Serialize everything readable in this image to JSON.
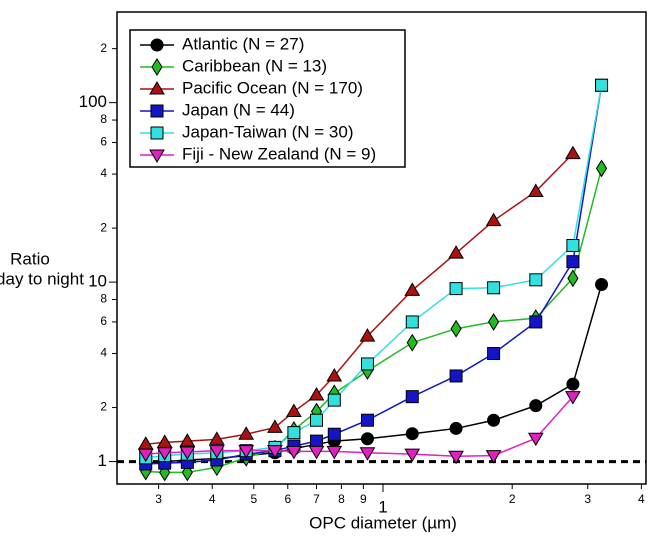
{
  "chart_data": {
    "type": "line",
    "x_label": "OPC diameter (µm)",
    "y_label": [
      "Ratio",
      "day to night"
    ],
    "xscale": "log",
    "yscale": "log",
    "xlim": [
      0.24,
      4.1
    ],
    "ylim": [
      0.75,
      320
    ],
    "xticks": [
      {
        "value": 0.3,
        "label": "3"
      },
      {
        "value": 0.4,
        "label": "4"
      },
      {
        "value": 0.5,
        "label": "5"
      },
      {
        "value": 0.6,
        "label": "6"
      },
      {
        "value": 0.7,
        "label": "7"
      },
      {
        "value": 0.8,
        "label": "8"
      },
      {
        "value": 0.9,
        "label": "9"
      },
      1,
      2,
      3,
      4
    ],
    "yticks": [
      1,
      2,
      4,
      6,
      8,
      10,
      {
        "value": 20,
        "label": "2"
      },
      {
        "value": 40,
        "label": "4"
      },
      {
        "value": 60,
        "label": "6"
      },
      {
        "value": 80,
        "label": "8"
      },
      100,
      {
        "value": 200,
        "label": "2"
      }
    ],
    "hline": 1,
    "x": [
      0.28,
      0.31,
      0.35,
      0.41,
      0.48,
      0.56,
      0.62,
      0.7,
      0.77,
      0.92,
      1.17,
      1.48,
      1.81,
      2.27,
      2.77,
      3.23
    ],
    "series": [
      {
        "name": "Atlantic (N = 27)",
        "color": "#000000",
        "marker": "circle",
        "values": [
          0.98,
          1.0,
          1.02,
          1.04,
          1.08,
          1.12,
          1.18,
          1.25,
          1.3,
          1.34,
          1.43,
          1.53,
          1.7,
          2.05,
          2.7,
          9.7
        ]
      },
      {
        "name": "Caribbean (N = 13)",
        "color": "#22bb22",
        "marker": "diamond",
        "values": [
          0.88,
          0.87,
          0.87,
          0.93,
          1.05,
          1.18,
          1.5,
          1.9,
          2.4,
          3.2,
          4.6,
          5.5,
          6.0,
          6.3,
          10.5,
          43
        ]
      },
      {
        "name": "Pacific Ocean (N = 170)",
        "color": "#aa1111",
        "marker": "triangle-up",
        "values": [
          1.25,
          1.28,
          1.3,
          1.33,
          1.42,
          1.55,
          1.9,
          2.35,
          3.0,
          5.0,
          9.0,
          14.5,
          22,
          32,
          52,
          null
        ]
      },
      {
        "name": "Japan (N = 44)",
        "color": "#1515c8",
        "marker": "square",
        "values": [
          0.97,
          0.98,
          0.99,
          1.02,
          1.1,
          1.15,
          1.22,
          1.3,
          1.42,
          1.7,
          2.3,
          3.0,
          4.0,
          6.0,
          13,
          125
        ]
      },
      {
        "name": "Japan-Taiwan (N = 30)",
        "color": "#33e0e0",
        "marker": "square",
        "values": [
          1.05,
          1.08,
          1.1,
          1.12,
          1.15,
          1.2,
          1.45,
          1.7,
          2.2,
          3.5,
          6.0,
          9.2,
          9.3,
          10.3,
          16,
          125
        ]
      },
      {
        "name": "Fiji - New Zealand (N = 9)",
        "color": "#e020c0",
        "marker": "triangle-down",
        "values": [
          1.1,
          1.12,
          1.13,
          1.15,
          1.15,
          1.15,
          1.14,
          1.14,
          1.14,
          1.12,
          1.1,
          1.07,
          1.08,
          1.35,
          2.3,
          null
        ]
      }
    ]
  }
}
